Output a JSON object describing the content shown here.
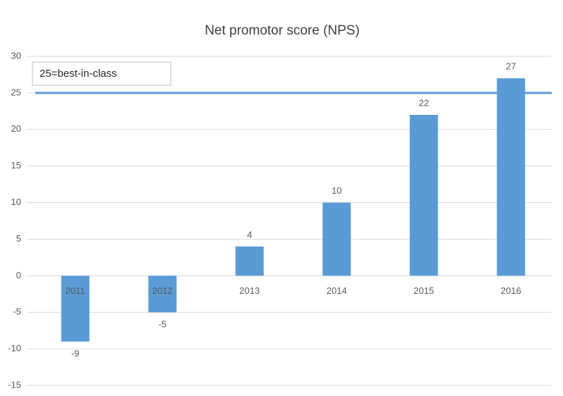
{
  "chart_data": {
    "type": "bar",
    "title": "Net promotor score (NPS)",
    "categories": [
      "2011",
      "2012",
      "2013",
      "2014",
      "2015",
      "2016"
    ],
    "values": [
      -9,
      -5,
      4,
      10,
      22,
      27
    ],
    "color": "#5b9bd5",
    "ylim": [
      -15,
      30
    ],
    "yticks": [
      -15,
      -10,
      -5,
      0,
      5,
      10,
      15,
      20,
      25,
      30
    ],
    "grid": true,
    "reference_line": {
      "value": 25,
      "label": "25=best-in-class",
      "color": "#5b9bd5"
    }
  }
}
